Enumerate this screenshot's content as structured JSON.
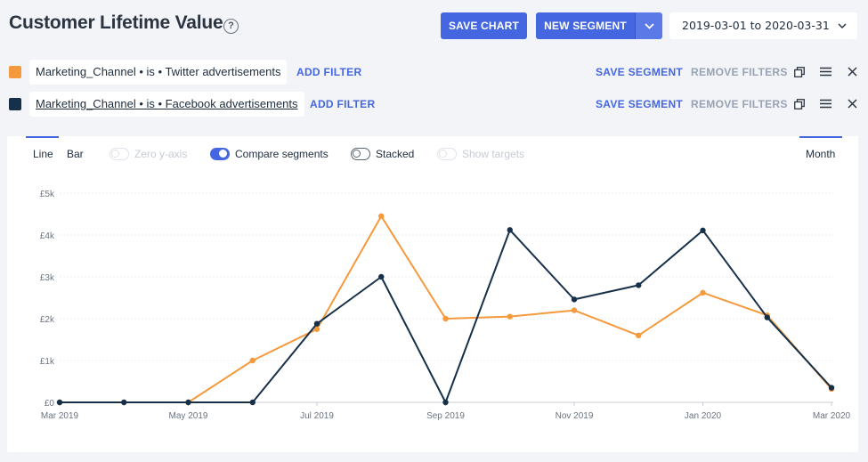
{
  "header": {
    "title": "Customer Lifetime Value",
    "help_glyph": "?",
    "save_chart_label": "SAVE CHART",
    "new_segment_label": "NEW SEGMENT",
    "date_range": "2019-03-01 to 2020-03-31"
  },
  "segments": [
    {
      "color": "#f5993d",
      "filter_text": "Marketing_Channel • is • Twitter advertisements",
      "add_filter_label": "ADD FILTER",
      "save_label": "SAVE SEGMENT",
      "remove_label": "REMOVE FILTERS"
    },
    {
      "color": "#17304a",
      "filter_text": "Marketing_Channel • is • Facebook advertisements",
      "add_filter_label": "ADD FILTER",
      "save_label": "SAVE SEGMENT",
      "remove_label": "REMOVE FILTERS"
    }
  ],
  "chart_controls": {
    "line_label": "Line",
    "bar_label": "Bar",
    "zero_y_axis_label": "Zero y-axis",
    "compare_segments_label": "Compare segments",
    "stacked_label": "Stacked",
    "show_targets_label": "Show targets",
    "interval_label": "Month",
    "zero_y_axis_on": false,
    "compare_segments_on": true,
    "stacked_on": false,
    "show_targets_on": false
  },
  "chart_data": {
    "type": "line",
    "x": [
      "2019-03",
      "2019-04",
      "2019-05",
      "2019-06",
      "2019-07",
      "2019-08",
      "2019-09",
      "2019-10",
      "2019-11",
      "2019-12",
      "2020-01",
      "2020-02",
      "2020-03"
    ],
    "x_tick_labels": [
      "Mar 2019",
      "May 2019",
      "Jul 2019",
      "Sep 2019",
      "Nov 2019",
      "Jan 2020",
      "Mar 2020"
    ],
    "x_tick_index": [
      0,
      2,
      4,
      6,
      8,
      10,
      12
    ],
    "y_tick_labels": [
      "£0",
      "£1k",
      "£2k",
      "£3k",
      "£4k",
      "£5k"
    ],
    "ylim": [
      0,
      5000
    ],
    "grid": true,
    "series": [
      {
        "color": "#f5993d",
        "values": [
          0,
          0,
          0,
          1000,
          1750,
          4450,
          2000,
          2050,
          2200,
          1600,
          2620,
          2080,
          320
        ]
      },
      {
        "color": "#17304a",
        "values": [
          0,
          0,
          0,
          0,
          1880,
          3000,
          0,
          4120,
          2460,
          2800,
          4110,
          2030,
          350
        ]
      }
    ]
  }
}
